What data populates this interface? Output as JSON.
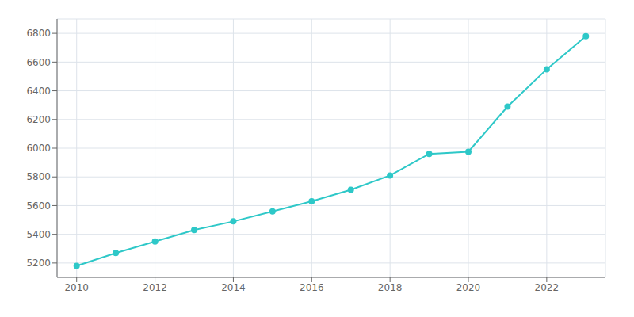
{
  "chart_data": {
    "type": "line",
    "x": [
      2010,
      2011,
      2012,
      2013,
      2014,
      2015,
      2016,
      2017,
      2018,
      2019,
      2020,
      2021,
      2022,
      2023
    ],
    "values": [
      5180,
      5270,
      5350,
      5430,
      5490,
      5560,
      5630,
      5710,
      5810,
      5960,
      5975,
      6290,
      6550,
      6780
    ],
    "color": "#2ec8c8",
    "marker": "circle",
    "xlim": [
      2009.5,
      2023.5
    ],
    "ylim": [
      5100,
      6900
    ],
    "xticks": [
      2010,
      2012,
      2014,
      2016,
      2018,
      2020,
      2022
    ],
    "yticks": [
      5200,
      5400,
      5600,
      5800,
      6000,
      6200,
      6400,
      6600,
      6800
    ],
    "grid": true
  }
}
